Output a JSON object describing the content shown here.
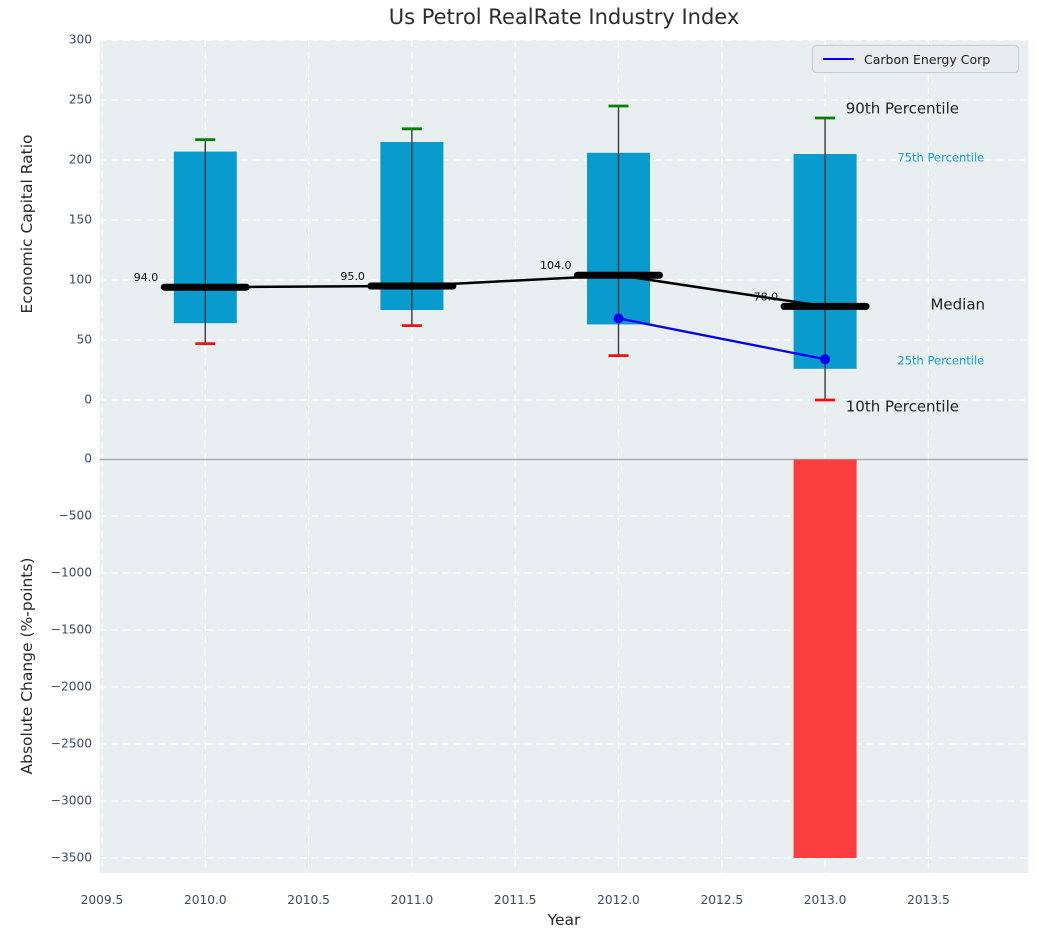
{
  "title": "Us Petrol RealRate Industry Index",
  "chart_data": {
    "type": "combo: percentile box series (top panel) + bar (bottom panel)",
    "x": {
      "label": "Year",
      "ticks": [
        2009.5,
        2010.0,
        2010.5,
        2011.0,
        2011.5,
        2012.0,
        2012.5,
        2013.0,
        2013.5
      ]
    },
    "legend": {
      "label": "Carbon Energy Corp",
      "position": "upper right"
    },
    "top_panel": {
      "ylabel": "Economic Capital Ratio",
      "yticks": [
        300,
        250,
        200,
        150,
        100,
        50,
        0
      ],
      "ylim": [
        -50,
        300
      ],
      "grid": "white dashed",
      "percentile_boxes": [
        {
          "year": 2010,
          "p10": 47,
          "p25": 64,
          "median": 94,
          "p75": 207,
          "p90": 217,
          "median_label": "94.0"
        },
        {
          "year": 2011,
          "p10": 62,
          "p25": 75,
          "median": 95,
          "p75": 215,
          "p90": 226,
          "median_label": "95.0"
        },
        {
          "year": 2012,
          "p10": 37,
          "p25": 63,
          "median": 104,
          "p75": 206,
          "p90": 245,
          "median_label": "104.0"
        },
        {
          "year": 2013,
          "p10": 0,
          "p25": 26,
          "median": 78,
          "p75": 205,
          "p90": 235,
          "median_label": "78.0"
        }
      ],
      "median_series": {
        "x": [
          2010,
          2011,
          2012,
          2013
        ],
        "y": [
          94,
          95,
          104,
          78
        ]
      },
      "company_series": {
        "name": "Carbon Energy Corp",
        "x": [
          2012,
          2013
        ],
        "y": [
          68,
          34
        ]
      },
      "annotations": [
        {
          "text": "90th Percentile",
          "x": 2013.1,
          "y": 242.5,
          "style": "large"
        },
        {
          "text": "75th Percentile",
          "x": 2013.35,
          "y": 201.5,
          "style": "small-accent"
        },
        {
          "text": "Median",
          "x": 2013.51,
          "y": 79,
          "style": "large"
        },
        {
          "text": "25th Percentile",
          "x": 2013.35,
          "y": 32.5,
          "style": "small-accent"
        },
        {
          "text": "10th Percentile",
          "x": 2013.1,
          "y": -6,
          "style": "large"
        }
      ]
    },
    "bottom_panel": {
      "ylabel": "Absolute Change (%-points)",
      "yticks": [
        0,
        -500,
        -1000,
        -1500,
        -2000,
        -2500,
        -3000,
        -3500
      ],
      "ylim": [
        -3630,
        0
      ],
      "bars": [
        {
          "year": 2013,
          "value": -3500
        }
      ]
    },
    "colors": {
      "panel_bg": "#e9eef1",
      "grid": "#ffffff",
      "box_fill": "#099bce",
      "bar_fill": "#fa3e3e",
      "whisker": "#3a3a3a",
      "cap_top": "#068006",
      "cap_bottom": "#f70e0e",
      "median": "#000000",
      "company_line": "#0000ee",
      "tick_label": "#3b4a63",
      "text": "#1f1f1f",
      "accent_text": "#169fd2",
      "zero_line": "#ababab",
      "legend_bg": "#e9ebf1",
      "legend_border": "#c7cad2"
    }
  }
}
